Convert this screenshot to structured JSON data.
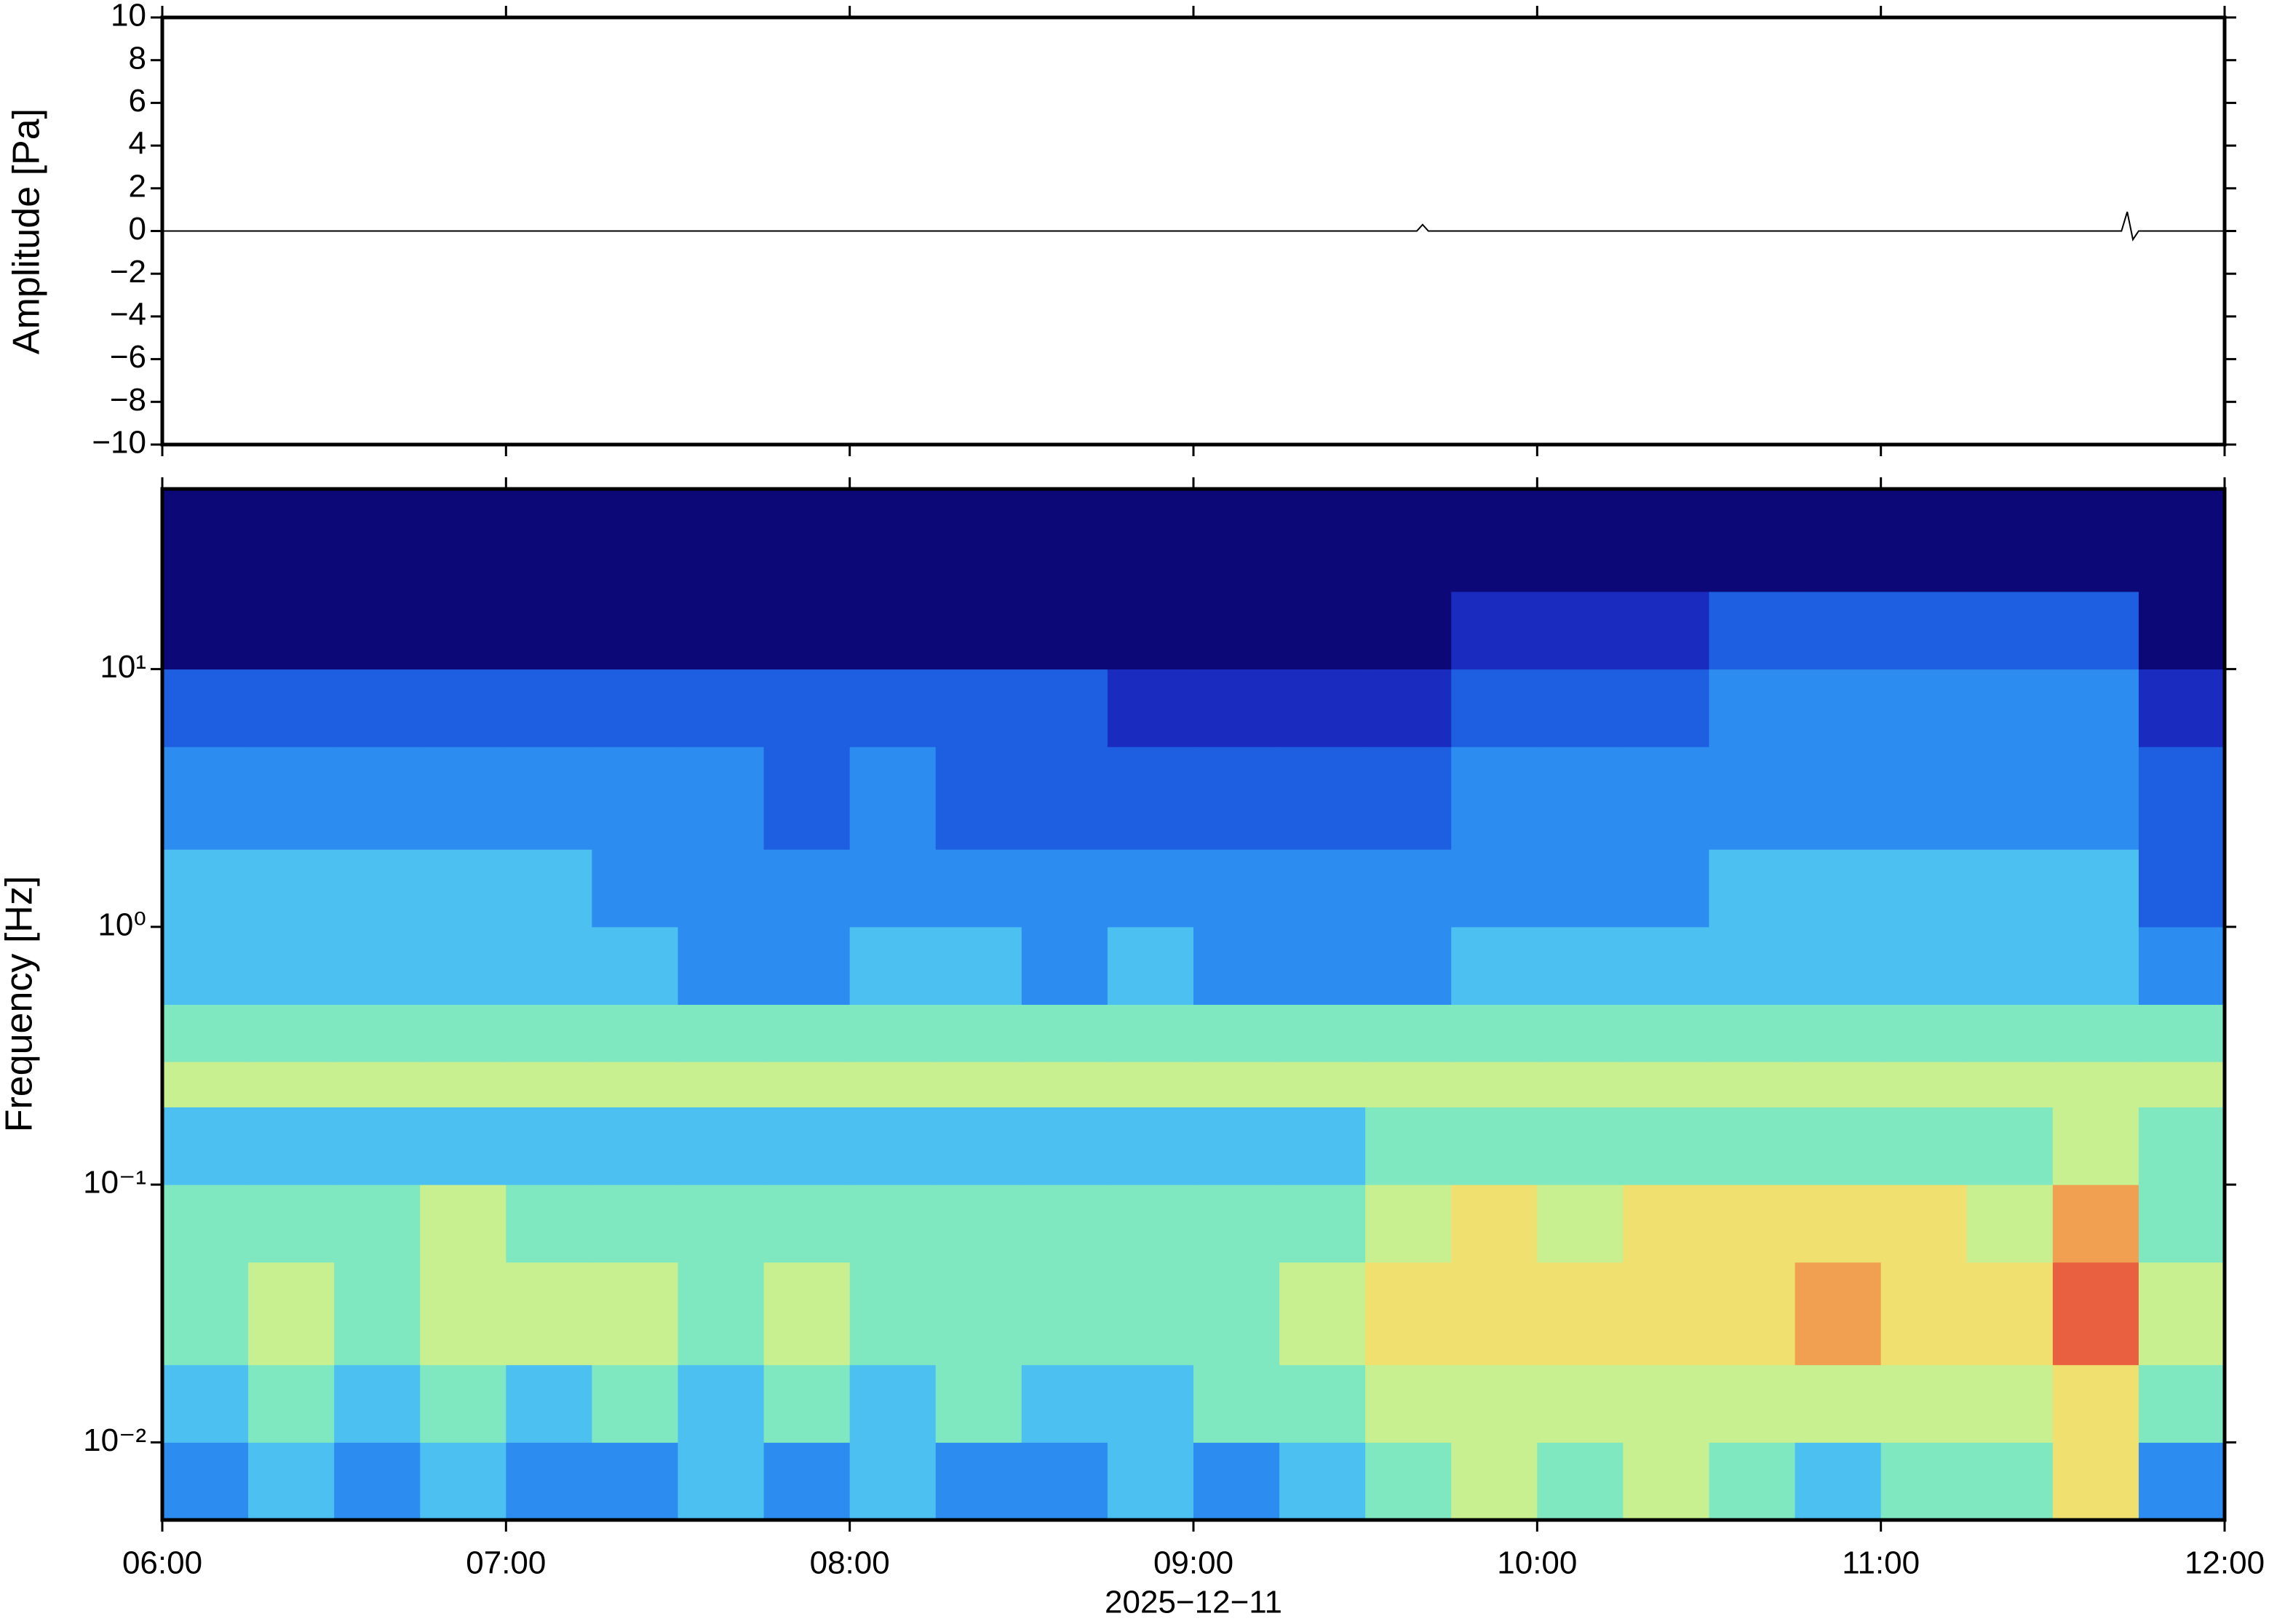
{
  "chart_data": [
    {
      "type": "line",
      "ylabel": "Amplitude [Pa]",
      "color": "#000000",
      "xlim": [
        "2025-12-11T06:00",
        "2025-12-11T12:00"
      ],
      "x": [
        "2025-12-11T06:00",
        "2025-12-11T09:39",
        "2025-12-11T09:40",
        "2025-12-11T09:41",
        "2025-12-11T11:42",
        "2025-12-11T11:43",
        "2025-12-11T11:44",
        "2025-12-11T11:45",
        "2025-12-11T12:00"
      ],
      "values": [
        0,
        0,
        0.3,
        0,
        0,
        0.9,
        -0.4,
        0,
        0
      ],
      "ylim": [
        -10,
        10
      ],
      "yticks": [
        {
          "value": -10,
          "label": "−10"
        },
        {
          "value": -8,
          "label": "−8"
        },
        {
          "value": -6,
          "label": "−6"
        },
        {
          "value": -4,
          "label": "−4"
        },
        {
          "value": -2,
          "label": "−2"
        },
        0,
        2,
        4,
        6,
        8,
        10
      ]
    },
    {
      "type": "heatmap",
      "ylabel": "Frequency [Hz]",
      "xlabel": "2025−12−11",
      "ylog": true,
      "xlim": [
        "2025-12-11T06:00",
        "2025-12-11T12:00"
      ],
      "xticks": [
        {
          "value": "2025-12-11T06:00",
          "label": "06:00"
        },
        {
          "value": "2025-12-11T07:00",
          "label": "07:00"
        },
        {
          "value": "2025-12-11T08:00",
          "label": "08:00"
        },
        {
          "value": "2025-12-11T09:00",
          "label": "09:00"
        },
        {
          "value": "2025-12-11T10:00",
          "label": "10:00"
        },
        {
          "value": "2025-12-11T11:00",
          "label": "11:00"
        },
        {
          "value": "2025-12-11T12:00",
          "label": "12:00"
        }
      ],
      "ylim": [
        0.005,
        50
      ],
      "yticks": [
        {
          "value": 0.01,
          "label": "10⁻²"
        },
        {
          "value": 0.1,
          "label": "10⁻¹"
        },
        {
          "value": 1,
          "label": "10⁰"
        },
        {
          "value": 10,
          "label": "10¹"
        }
      ],
      "colormap": [
        "#0c0878",
        "#1a2cc0",
        "#1e5ee0",
        "#2c8cf0",
        "#4cc0f0",
        "#80e8c0",
        "#c8f090",
        "#f0e070",
        "#f0a050",
        "#e86040"
      ],
      "x": [
        "2025-12-11T06:00",
        "2025-12-11T06:15",
        "2025-12-11T06:30",
        "2025-12-11T06:45",
        "2025-12-11T07:00",
        "2025-12-11T07:15",
        "2025-12-11T07:30",
        "2025-12-11T07:45",
        "2025-12-11T08:00",
        "2025-12-11T08:15",
        "2025-12-11T08:30",
        "2025-12-11T08:45",
        "2025-12-11T09:00",
        "2025-12-11T09:15",
        "2025-12-11T09:30",
        "2025-12-11T09:45",
        "2025-12-11T10:00",
        "2025-12-11T10:15",
        "2025-12-11T10:30",
        "2025-12-11T10:45",
        "2025-12-11T11:00",
        "2025-12-11T11:15",
        "2025-12-11T11:30",
        "2025-12-11T11:45",
        "2025-12-11T12:00"
      ],
      "y": [
        0.005,
        0.01,
        0.02,
        0.05,
        0.1,
        0.2,
        0.3,
        0.5,
        1,
        2,
        5,
        10,
        20,
        50
      ],
      "z": [
        [
          3,
          4,
          3,
          4,
          3,
          3,
          4,
          3,
          4,
          3,
          3,
          4,
          3,
          4,
          5,
          6,
          5,
          6,
          5,
          4,
          5,
          5,
          7,
          3
        ],
        [
          4,
          5,
          4,
          5,
          4,
          5,
          4,
          5,
          4,
          5,
          4,
          4,
          5,
          5,
          6,
          6,
          6,
          6,
          6,
          6,
          6,
          6,
          7,
          5
        ],
        [
          5,
          6,
          5,
          6,
          6,
          6,
          5,
          6,
          5,
          5,
          5,
          5,
          5,
          6,
          7,
          7,
          7,
          7,
          7,
          8,
          7,
          7,
          9,
          6
        ],
        [
          5,
          5,
          5,
          6,
          5,
          5,
          5,
          5,
          5,
          5,
          5,
          5,
          5,
          5,
          6,
          7,
          6,
          7,
          7,
          7,
          7,
          6,
          8,
          5
        ],
        [
          4,
          4,
          4,
          4,
          4,
          4,
          4,
          4,
          4,
          4,
          4,
          4,
          4,
          4,
          5,
          5,
          5,
          5,
          5,
          5,
          5,
          5,
          6,
          5
        ],
        [
          6,
          6,
          6,
          6,
          6,
          6,
          6,
          6,
          6,
          6,
          6,
          6,
          6,
          6,
          6,
          6,
          6,
          6,
          6,
          6,
          6,
          6,
          6,
          6
        ],
        [
          5,
          5,
          5,
          5,
          5,
          5,
          5,
          5,
          5,
          5,
          5,
          5,
          5,
          5,
          5,
          5,
          5,
          5,
          5,
          5,
          5,
          5,
          5,
          5
        ],
        [
          4,
          4,
          4,
          4,
          4,
          4,
          3,
          3,
          4,
          4,
          3,
          4,
          3,
          3,
          3,
          4,
          4,
          4,
          4,
          4,
          4,
          4,
          4,
          3
        ],
        [
          4,
          4,
          4,
          4,
          4,
          3,
          3,
          3,
          3,
          3,
          3,
          3,
          3,
          3,
          3,
          3,
          3,
          3,
          4,
          4,
          4,
          4,
          4,
          2
        ],
        [
          3,
          3,
          3,
          3,
          3,
          3,
          3,
          2,
          3,
          2,
          2,
          2,
          2,
          2,
          2,
          3,
          3,
          3,
          3,
          3,
          3,
          3,
          3,
          2
        ],
        [
          2,
          2,
          2,
          2,
          2,
          2,
          2,
          2,
          2,
          2,
          2,
          1,
          1,
          1,
          1,
          2,
          2,
          2,
          3,
          3,
          3,
          3,
          3,
          1
        ],
        [
          0,
          0,
          0,
          0,
          0,
          0,
          0,
          0,
          0,
          0,
          0,
          0,
          0,
          0,
          0,
          1,
          1,
          1,
          2,
          2,
          2,
          2,
          2,
          0
        ],
        [
          0,
          0,
          0,
          0,
          0,
          0,
          0,
          0,
          0,
          0,
          0,
          0,
          0,
          0,
          0,
          0,
          0,
          0,
          0,
          0,
          0,
          0,
          0,
          0
        ]
      ]
    }
  ]
}
